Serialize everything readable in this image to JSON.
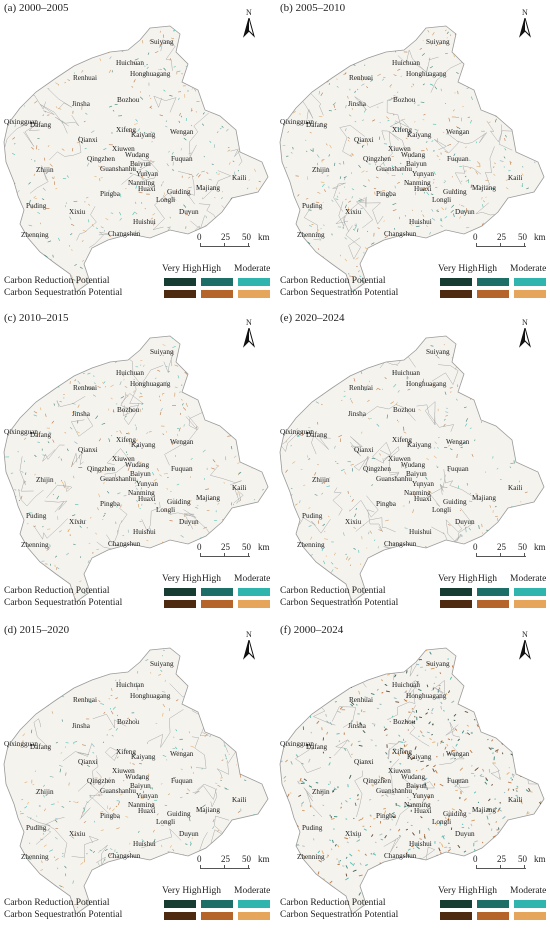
{
  "legend": {
    "levels": [
      "Very High",
      "High",
      "Moderate"
    ],
    "rows": [
      {
        "label": "Carbon Reduction Potential",
        "colors": [
          "#173d33",
          "#1e6e68",
          "#2fb5ad"
        ]
      },
      {
        "label": "Carbon Sequestration Potential",
        "colors": [
          "#4d2a10",
          "#b5642a",
          "#e5a65c"
        ]
      }
    ]
  },
  "scale": {
    "ticks": [
      "0",
      "25",
      "50"
    ],
    "unit": "km"
  },
  "north": "N",
  "places": [
    "Suiyang",
    "Huichuan",
    "Renhuai",
    "Honghuagang",
    "Jinsha",
    "Bozhou",
    "Qixingguan",
    "Dafang",
    "Qianxi",
    "Xifeng",
    "Kaiyang",
    "Wengan",
    "Xiuwen",
    "Wudang",
    "Qingzhen",
    "Baiyun",
    "Fuquan",
    "Zhijin",
    "Guanshanhu",
    "Yunyan",
    "Nanming",
    "Kaili",
    "Huaxi",
    "Guiding",
    "Majiang",
    "Pingba",
    "Longli",
    "Puding",
    "Xixiu",
    "Duyun",
    "Huishui",
    "Zhenning",
    "Changshun"
  ],
  "panels": [
    {
      "title": "(a) 2000–2005",
      "density": 0.55
    },
    {
      "title": "(b) 2005–2010",
      "density": 0.7
    },
    {
      "title": "(c) 2010–2015",
      "density": 0.55
    },
    {
      "title": "(e) 2020–2024",
      "density": 0.45
    },
    {
      "title": "(d) 2015–2020",
      "density": 0.5
    },
    {
      "title": "(f) 2000–2024",
      "density": 1.0
    }
  ]
}
